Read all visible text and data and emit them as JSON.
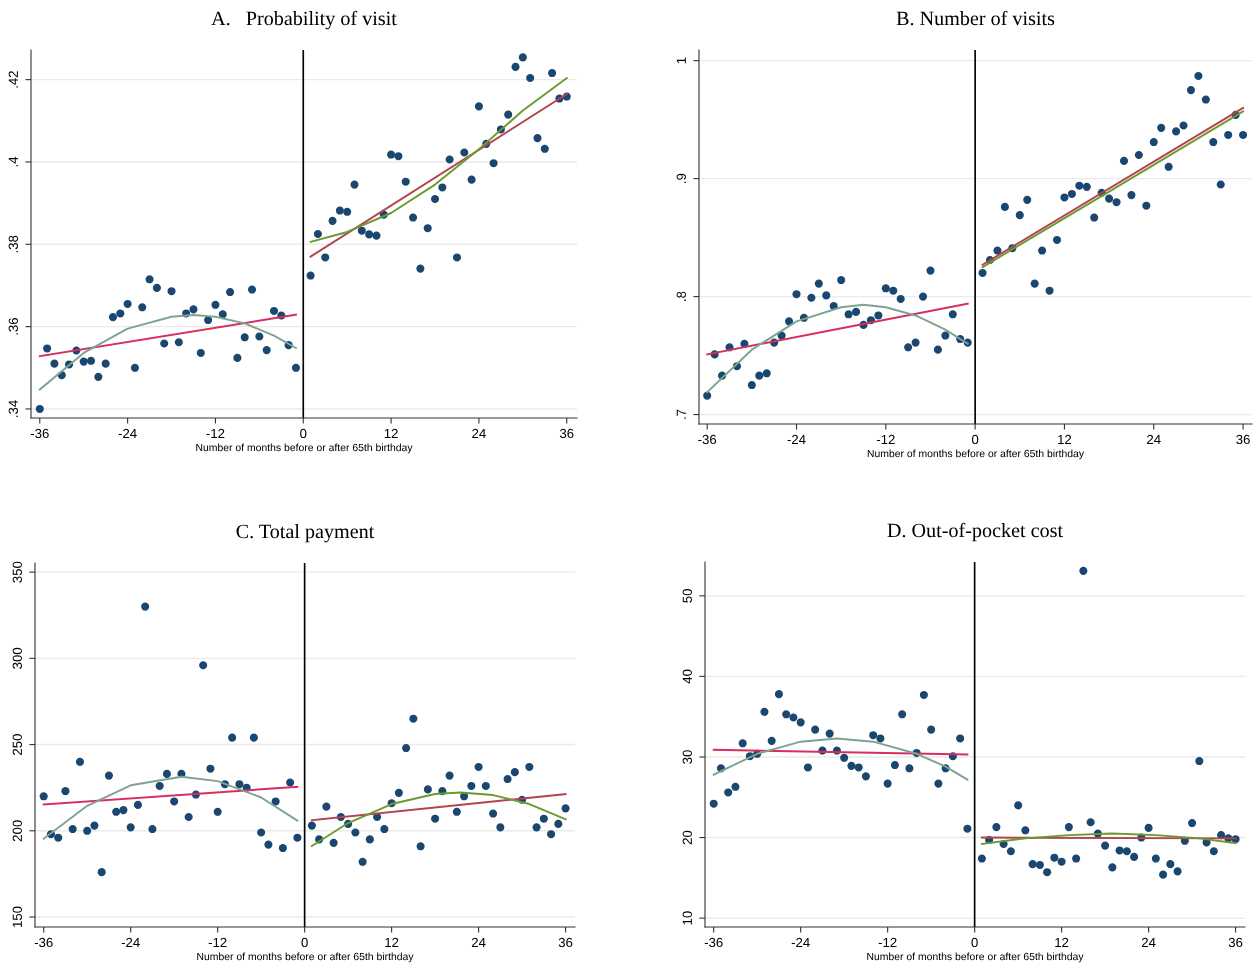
{
  "chart_data": [
    {
      "type": "scatter",
      "title": "A.   Probability of visit",
      "xlabel": "Number of months before or after 65th birthday",
      "xlim": [
        -37.2,
        37.4
      ],
      "xticks": [
        -36,
        -24,
        -12,
        0,
        12,
        24,
        36
      ],
      "ylim": [
        0.3378,
        0.4272
      ],
      "yticks": [
        {
          "value": 0.34,
          "label": ".34"
        },
        {
          "value": 0.36,
          "label": ".36"
        },
        {
          "value": 0.38,
          "label": ".38"
        },
        {
          "value": 0.4,
          "label": ".4"
        },
        {
          "value": 0.42,
          "label": ".42"
        }
      ],
      "grid": "y",
      "ref_lines": [
        {
          "axis": "x",
          "value": 0,
          "color": "#000000"
        }
      ],
      "series": [
        {
          "marker": "circle",
          "color": "#1a476f",
          "x": [
            -36,
            -35,
            -34,
            -33,
            -32,
            -31,
            -30,
            -29,
            -28,
            -27,
            -26,
            -25,
            -24,
            -23,
            -22,
            -21,
            -20,
            -19,
            -18,
            -17,
            -16,
            -15,
            -14,
            -13,
            -12,
            -11,
            -10,
            -9,
            -8,
            -7,
            -6,
            -5,
            -4,
            -3,
            -2,
            -1,
            1,
            2,
            3,
            4,
            5,
            6,
            7,
            8,
            9,
            10,
            11,
            12,
            13,
            14,
            15,
            16,
            17,
            18,
            19,
            20,
            21,
            22,
            23,
            24,
            25,
            26,
            27,
            28,
            29,
            30,
            31,
            32,
            33,
            34,
            35,
            36
          ],
          "values": [
            0.34,
            0.3547,
            0.351,
            0.3482,
            0.3508,
            0.3542,
            0.3515,
            0.3517,
            0.3478,
            0.351,
            0.3623,
            0.3632,
            0.3655,
            0.35,
            0.3647,
            0.3715,
            0.3694,
            0.3559,
            0.3686,
            0.3562,
            0.3632,
            0.3642,
            0.3536,
            0.3616,
            0.3653,
            0.363,
            0.3684,
            0.3524,
            0.3574,
            0.369,
            0.3576,
            0.3543,
            0.3638,
            0.3627,
            0.3555,
            0.35,
            0.3724,
            0.3825,
            0.3768,
            0.3857,
            0.3882,
            0.3879,
            0.3945,
            0.3833,
            0.3824,
            0.3821,
            0.3872,
            0.4018,
            0.4014,
            0.3952,
            0.3865,
            0.3741,
            0.3839,
            0.391,
            0.3938,
            0.4006,
            0.3768,
            0.4023,
            0.3957,
            0.4135,
            0.4044,
            0.3997,
            0.4079,
            0.4115,
            0.4231,
            0.4254,
            0.4204,
            0.4058,
            0.4032,
            0.4216,
            0.4154,
            0.4159
          ]
        },
        {
          "type": "line",
          "line_style": "solid",
          "color": "#d62f5f",
          "x": [
            -36,
            -1
          ],
          "values": [
            0.3528,
            0.3629
          ]
        },
        {
          "type": "line",
          "line_style": "solid",
          "color": "#7fa393",
          "x": [
            -36,
            -30,
            -24,
            -18,
            -15,
            -12,
            -8,
            -4,
            -1
          ],
          "values": [
            0.3447,
            0.3536,
            0.3595,
            0.3624,
            0.3628,
            0.3624,
            0.3608,
            0.3578,
            0.3548
          ]
        },
        {
          "type": "line",
          "line_style": "solid",
          "color": "#b5434f",
          "x": [
            1,
            36
          ],
          "values": [
            0.377,
            0.4165
          ]
        },
        {
          "type": "line",
          "line_style": "solid",
          "color": "#6a9b30",
          "x": [
            1,
            6,
            12,
            18,
            24,
            30,
            36
          ],
          "values": [
            0.3806,
            0.383,
            0.3876,
            0.3945,
            0.4031,
            0.4125,
            0.4204
          ]
        }
      ]
    },
    {
      "type": "scatter",
      "title": "B. Number of visits",
      "xlabel": "Number of months before or after 65th birthday",
      "xlim": [
        -37.1,
        37.2
      ],
      "xticks": [
        -36,
        -24,
        -12,
        0,
        12,
        24,
        36
      ],
      "ylim": [
        0.692,
        1.009
      ],
      "yticks": [
        {
          "value": 0.7,
          "label": ".7"
        },
        {
          "value": 0.8,
          "label": ".8"
        },
        {
          "value": 0.9,
          "label": ".9"
        },
        1
      ],
      "grid": "y",
      "ref_lines": [
        {
          "axis": "x",
          "value": 0,
          "color": "#000000"
        }
      ],
      "series": [
        {
          "marker": "circle",
          "color": "#1a476f",
          "x": [
            -36,
            -35,
            -34,
            -33,
            -32,
            -31,
            -30,
            -29,
            -28,
            -27,
            -26,
            -25,
            -24,
            -23,
            -22,
            -21,
            -20,
            -19,
            -18,
            -17,
            -16,
            -15,
            -14,
            -13,
            -12,
            -11,
            -10,
            -9,
            -8,
            -7,
            -6,
            -5,
            -4,
            -3,
            -2,
            -1,
            1,
            2,
            3,
            4,
            5,
            6,
            7,
            8,
            9,
            10,
            11,
            12,
            13,
            14,
            15,
            16,
            17,
            18,
            19,
            20,
            21,
            22,
            23,
            24,
            25,
            26,
            27,
            28,
            29,
            30,
            31,
            32,
            33,
            34,
            35,
            36
          ],
          "values": [
            0.716,
            0.751,
            0.733,
            0.757,
            0.741,
            0.76,
            0.725,
            0.733,
            0.735,
            0.761,
            0.767,
            0.779,
            0.802,
            0.782,
            0.799,
            0.811,
            0.801,
            0.792,
            0.814,
            0.785,
            0.787,
            0.776,
            0.78,
            0.784,
            0.807,
            0.805,
            0.798,
            0.757,
            0.761,
            0.8,
            0.822,
            0.755,
            0.767,
            0.785,
            0.764,
            0.761,
            0.82,
            0.831,
            0.839,
            0.876,
            0.841,
            0.869,
            0.882,
            0.811,
            0.839,
            0.805,
            0.848,
            0.884,
            0.887,
            0.894,
            0.893,
            0.867,
            0.888,
            0.883,
            0.88,
            0.915,
            0.886,
            0.92,
            0.877,
            0.931,
            0.943,
            0.91,
            0.94,
            0.945,
            0.975,
            0.987,
            0.967,
            0.931,
            0.895,
            0.937,
            0.954,
            0.937
          ]
        },
        {
          "type": "line",
          "line_style": "solid",
          "color": "#d62f5f",
          "x": [
            -36,
            -1
          ],
          "values": [
            0.751,
            0.794
          ]
        },
        {
          "type": "line",
          "line_style": "solid",
          "color": "#7fa393",
          "x": [
            -36,
            -30,
            -24,
            -18,
            -15,
            -12,
            -8,
            -4,
            -1
          ],
          "values": [
            0.719,
            0.755,
            0.779,
            0.791,
            0.793,
            0.791,
            0.784,
            0.772,
            0.76
          ]
        },
        {
          "type": "line",
          "line_style": "solid",
          "color": "#b5434f",
          "x": [
            1,
            36
          ],
          "values": [
            0.827,
            0.96
          ]
        },
        {
          "type": "line",
          "line_style": "solid",
          "color": "#6a9b30",
          "x": [
            1,
            18,
            36
          ],
          "values": [
            0.825,
            0.889,
            0.957
          ]
        }
      ]
    },
    {
      "type": "scatter",
      "title": "C. Total payment",
      "xlabel": "Number of months before or after 65th birthday",
      "xlim": [
        -37.2,
        37.3
      ],
      "xticks": [
        -36,
        -24,
        -12,
        0,
        12,
        24,
        36
      ],
      "ylim": [
        144.2,
        355.3
      ],
      "yticks": [
        150,
        200,
        250,
        300,
        350
      ],
      "grid": "y",
      "ref_lines": [
        {
          "axis": "x",
          "value": 0,
          "color": "#000000"
        }
      ],
      "series": [
        {
          "marker": "circle",
          "color": "#1a476f",
          "x": [
            -36,
            -35,
            -34,
            -33,
            -32,
            -31,
            -30,
            -29,
            -28,
            -27,
            -26,
            -25,
            -24,
            -23,
            -22,
            -21,
            -20,
            -19,
            -18,
            -17,
            -16,
            -15,
            -14,
            -13,
            -12,
            -11,
            -10,
            -9,
            -8,
            -7,
            -6,
            -5,
            -4,
            -3,
            -2,
            -1,
            1,
            2,
            3,
            4,
            5,
            6,
            7,
            8,
            9,
            10,
            11,
            12,
            13,
            14,
            15,
            16,
            17,
            18,
            19,
            20,
            21,
            22,
            23,
            24,
            25,
            26,
            27,
            28,
            29,
            30,
            31,
            32,
            33,
            34,
            35,
            36
          ],
          "values": [
            220,
            198,
            196,
            223,
            201,
            240,
            200,
            203,
            176,
            232,
            211,
            212,
            202,
            215,
            330,
            201,
            226,
            233,
            217,
            233,
            208,
            221,
            296,
            236,
            211,
            227,
            254,
            227,
            225,
            254,
            199,
            192,
            217,
            190,
            228,
            196,
            203,
            195,
            214,
            193,
            208,
            204,
            199,
            182,
            195,
            208,
            201,
            216,
            222,
            248,
            265,
            191,
            224,
            207,
            223,
            232,
            211,
            220,
            226,
            237,
            226,
            210,
            202,
            230,
            234,
            218,
            237,
            202,
            207,
            198,
            204,
            213
          ]
        },
        {
          "type": "line",
          "line_style": "solid",
          "color": "#d62f5f",
          "x": [
            -36,
            -1
          ],
          "values": [
            215.3,
            225.5
          ]
        },
        {
          "type": "line",
          "line_style": "solid",
          "color": "#7fa393",
          "x": [
            -36,
            -30,
            -24,
            -17,
            -12,
            -6,
            -1
          ],
          "values": [
            195.4,
            214.5,
            226.4,
            231.3,
            228.8,
            219.3,
            205.9
          ]
        },
        {
          "type": "line",
          "line_style": "solid",
          "color": "#b5434f",
          "x": [
            1,
            36
          ],
          "values": [
            206.1,
            221.3
          ]
        },
        {
          "type": "line",
          "line_style": "solid",
          "color": "#6a9b30",
          "x": [
            1,
            6,
            12,
            18,
            21.5,
            26,
            31,
            36
          ],
          "values": [
            191.2,
            204.5,
            215.5,
            221.3,
            222.2,
            220.7,
            215.5,
            206.7
          ]
        }
      ]
    },
    {
      "type": "scatter",
      "title": "D. Out-of-pocket cost",
      "xlabel": "Number of months before or after 65th birthday",
      "xlim": [
        -37.2,
        37.3
      ],
      "xticks": [
        -36,
        -24,
        -12,
        0,
        12,
        24,
        36
      ],
      "ylim": [
        8.9,
        54.2
      ],
      "yticks": [
        10,
        20,
        30,
        40,
        50
      ],
      "grid": "y",
      "ref_lines": [
        {
          "axis": "x",
          "value": 0,
          "color": "#000000"
        }
      ],
      "series": [
        {
          "marker": "circle",
          "color": "#1a476f",
          "x": [
            -36,
            -35,
            -34,
            -33,
            -32,
            -31,
            -30,
            -29,
            -28,
            -27,
            -26,
            -25,
            -24,
            -23,
            -22,
            -21,
            -20,
            -19,
            -18,
            -17,
            -16,
            -15,
            -14,
            -13,
            -12,
            -11,
            -10,
            -9,
            -8,
            -7,
            -6,
            -5,
            -4,
            -3,
            -2,
            -1,
            1,
            2,
            3,
            4,
            5,
            6,
            7,
            8,
            9,
            10,
            11,
            12,
            13,
            14,
            15,
            16,
            17,
            18,
            19,
            20,
            21,
            22,
            23,
            24,
            25,
            26,
            27,
            28,
            29,
            30,
            31,
            32,
            33,
            34,
            35,
            36
          ],
          "values": [
            24.2,
            28.6,
            25.6,
            26.3,
            31.7,
            30.1,
            30.4,
            35.6,
            32.0,
            37.8,
            35.3,
            34.9,
            34.3,
            28.7,
            33.4,
            30.8,
            32.9,
            30.8,
            29.9,
            28.9,
            28.7,
            27.6,
            32.7,
            32.3,
            26.7,
            29.0,
            35.3,
            28.6,
            30.5,
            37.7,
            33.4,
            26.7,
            28.6,
            30.1,
            32.3,
            21.1,
            17.4,
            19.7,
            21.3,
            19.2,
            18.3,
            24.0,
            20.9,
            16.7,
            16.6,
            15.7,
            17.5,
            17.0,
            21.3,
            17.4,
            53.1,
            21.9,
            20.5,
            19.0,
            16.3,
            18.4,
            18.3,
            17.6,
            20.0,
            21.2,
            17.4,
            15.4,
            16.7,
            15.8,
            19.6,
            21.8,
            29.5,
            19.4,
            18.3,
            20.3,
            19.9,
            19.8
          ]
        },
        {
          "type": "line",
          "line_style": "solid",
          "color": "#d62f5f",
          "x": [
            -36,
            -1
          ],
          "values": [
            30.9,
            30.3
          ]
        },
        {
          "type": "line",
          "line_style": "solid",
          "color": "#7fa393",
          "x": [
            -36,
            -30,
            -24,
            -19,
            -14,
            -8,
            -4,
            -1
          ],
          "values": [
            27.8,
            30.4,
            31.9,
            32.3,
            31.9,
            30.4,
            28.8,
            27.2
          ]
        },
        {
          "type": "line",
          "line_style": "solid",
          "color": "#b5434f",
          "x": [
            1,
            36
          ],
          "values": [
            20.0,
            19.9
          ]
        },
        {
          "type": "line",
          "line_style": "solid",
          "color": "#6a9b30",
          "x": [
            1,
            7,
            13,
            19,
            25,
            31,
            36
          ],
          "values": [
            19.2,
            19.9,
            20.3,
            20.5,
            20.3,
            19.9,
            19.3
          ]
        }
      ]
    }
  ]
}
